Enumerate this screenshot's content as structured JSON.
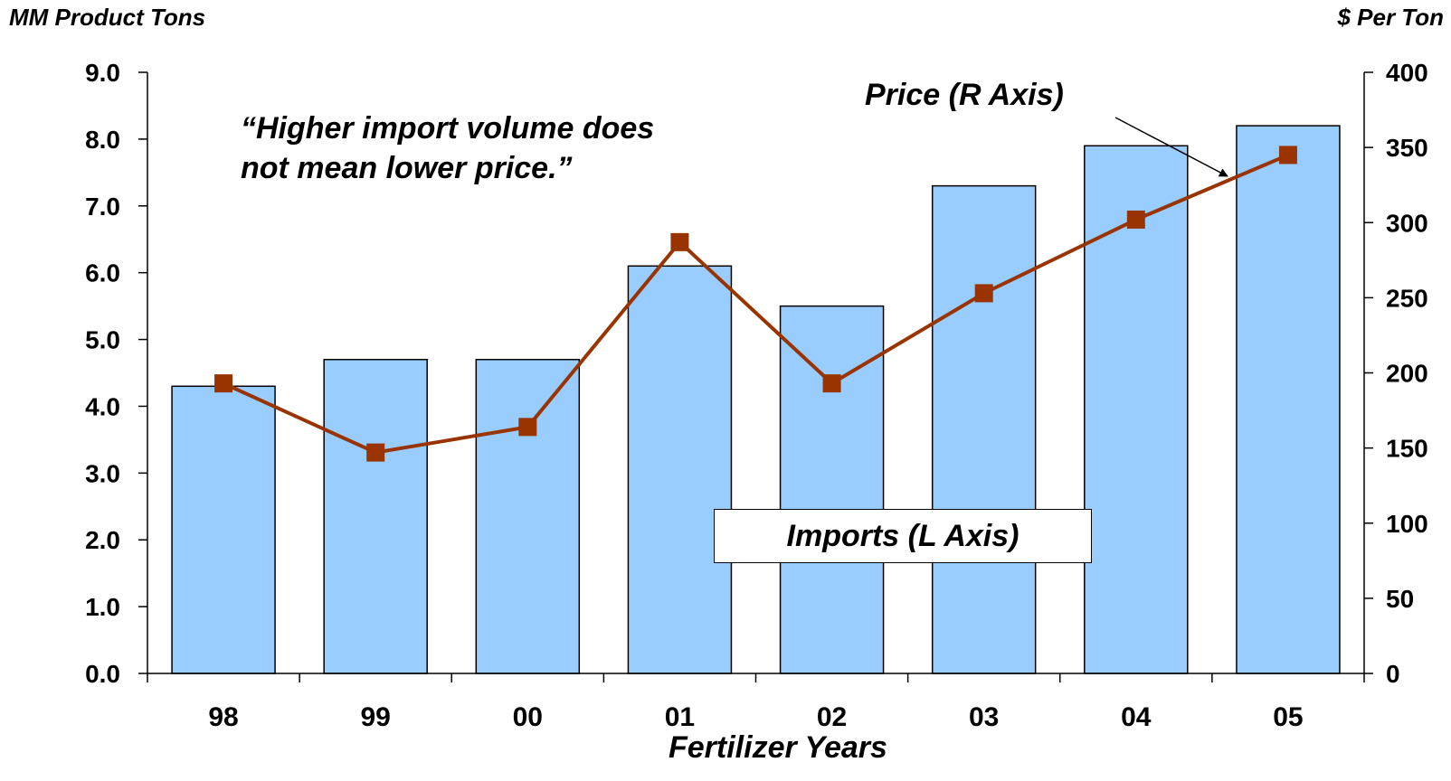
{
  "chart_data": {
    "type": "bar",
    "categories": [
      "98",
      "99",
      "00",
      "01",
      "02",
      "03",
      "04",
      "05"
    ],
    "series": [
      {
        "name": "Imports (L Axis)",
        "type": "bar",
        "axis": "left",
        "values": [
          4.3,
          4.7,
          4.7,
          6.1,
          5.5,
          7.3,
          7.9,
          8.2
        ]
      },
      {
        "name": "Price (R Axis)",
        "type": "line",
        "axis": "right",
        "values": [
          193,
          147,
          164,
          287,
          193,
          253,
          302,
          345
        ]
      }
    ],
    "ylabel_left": "MM Product Tons",
    "ylabel_right": "$ Per Ton",
    "xlabel": "Fertilizer Years",
    "ylim_left": [
      0,
      9
    ],
    "ylim_right": [
      0,
      400
    ],
    "yticks_left": [
      "0.0",
      "1.0",
      "2.0",
      "3.0",
      "4.0",
      "5.0",
      "6.0",
      "7.0",
      "8.0",
      "9.0"
    ],
    "yticks_right": [
      "0",
      "50",
      "100",
      "150",
      "200",
      "250",
      "300",
      "350",
      "400"
    ],
    "annotation": "“Higher import volume does not mean lower price.”",
    "annotation_lines": [
      "“Higher import volume does",
      "not mean lower price.”"
    ],
    "grid": false,
    "colors": {
      "bar_fill": "#99CCFF",
      "bar_stroke": "#000000",
      "line": "#993300",
      "marker": "#993300"
    }
  }
}
